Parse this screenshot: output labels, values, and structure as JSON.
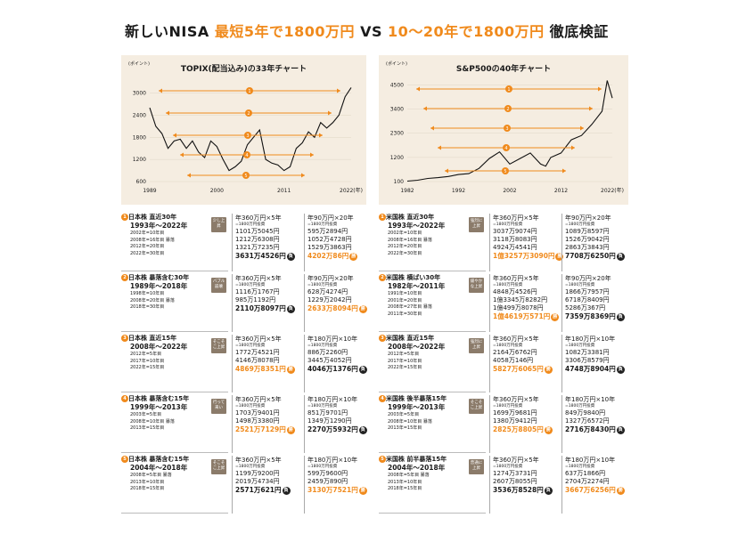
{
  "title": {
    "part1": "新しいNISA ",
    "part2": "最短5年で1800万円",
    "part3": " VS ",
    "part4": "10〜20年で1800万円",
    "part5": " 徹底検証"
  },
  "chart_data": [
    {
      "type": "line",
      "title": "TOPIX(配当込み)の33年チャート",
      "ylabel": "(ポイント)",
      "yticks": [
        "3000",
        "2400",
        "1800",
        "1200",
        "600"
      ],
      "xticks": [
        "1989",
        "2000",
        "2011",
        "2022(年)"
      ],
      "ylim": [
        600,
        3400
      ],
      "x": [
        1989,
        1990,
        1991,
        1992,
        1993,
        1994,
        1995,
        1996,
        1997,
        1998,
        1999,
        2000,
        2001,
        2002,
        2003,
        2004,
        2005,
        2006,
        2007,
        2008,
        2009,
        2010,
        2011,
        2012,
        2013,
        2014,
        2015,
        2016,
        2017,
        2018,
        2019,
        2020,
        2021,
        2022
      ],
      "values": [
        2600,
        2100,
        1900,
        1500,
        1700,
        1750,
        1500,
        1700,
        1400,
        1250,
        1700,
        1550,
        1200,
        900,
        1000,
        1150,
        1600,
        1800,
        2000,
        1200,
        1100,
        1050,
        900,
        1000,
        1500,
        1650,
        1950,
        1800,
        2200,
        2050,
        2200,
        2400,
        2900,
        3150
      ],
      "arrows": [
        "1",
        "2",
        "3",
        "4",
        "5"
      ]
    },
    {
      "type": "line",
      "title": "S&P500の40年チャート",
      "ylabel": "(ポイント)",
      "yticks": [
        "4500",
        "3400",
        "2300",
        "1200",
        "100"
      ],
      "xticks": [
        "1982",
        "1992",
        "2002",
        "2012",
        "2022(年)"
      ],
      "ylim": [
        100,
        4800
      ],
      "x": [
        1982,
        1984,
        1986,
        1988,
        1990,
        1992,
        1994,
        1996,
        1998,
        2000,
        2002,
        2004,
        2006,
        2008,
        2009,
        2010,
        2012,
        2014,
        2016,
        2018,
        2020,
        2021,
        2022
      ],
      "values": [
        120,
        160,
        240,
        280,
        330,
        420,
        460,
        700,
        1150,
        1450,
        900,
        1150,
        1400,
        900,
        800,
        1200,
        1400,
        2000,
        2200,
        2700,
        3300,
        4700,
        3900
      ],
      "arrows": [
        "1",
        "2",
        "3",
        "4",
        "5"
      ]
    }
  ],
  "left_rows": [
    {
      "num": "1",
      "head": "日本株 直近30年",
      "sub": "1993年〜2022年",
      "badge": "少し上昇",
      "lines": [
        "2002年=10年目",
        "2008年=16年目 暴落",
        "2012年=20年目",
        "2022年=30年目"
      ],
      "a": {
        "head": "年360万円×5年",
        "sub": "=1800万円投資",
        "vals": [
          "1101万5045円",
          "1212万6308円",
          "1321万7235円"
        ],
        "final": "3631万4526円",
        "final_orange": false,
        "tag": "負",
        "tag_win": false
      },
      "b": {
        "head": "年90万円×20年",
        "sub": "=1800万円投資",
        "vals": [
          "595万2894円",
          "1052万4728円",
          "1529万3863円"
        ],
        "final": "4202万86円",
        "final_orange": true,
        "tag": "勝",
        "tag_win": true
      }
    },
    {
      "num": "2",
      "head": "日本株 暴落含む30年",
      "sub": "1989年〜2018年",
      "badge": "バブル崩壊",
      "lines": [
        "1998年=10年目",
        "2008年=20年目 暴落",
        "2018年=30年目"
      ],
      "a": {
        "head": "年360万円×5年",
        "sub": "=1800万円投資",
        "vals": [
          "1116万1767円",
          "985万1192円"
        ],
        "final": "2110万8097円",
        "final_orange": false,
        "tag": "負",
        "tag_win": false
      },
      "b": {
        "head": "年90万円×20年",
        "sub": "=1800万円投資",
        "vals": [
          "628万4274円",
          "1229万2042円"
        ],
        "final": "2633万8094円",
        "final_orange": true,
        "tag": "勝",
        "tag_win": true
      }
    },
    {
      "num": "3",
      "head": "日本株 直近15年",
      "sub": "2008年〜2022年",
      "badge": "そこそこ上昇",
      "lines": [
        "2012年=5年目",
        "2017年=10年目",
        "2022年=15年目"
      ],
      "a": {
        "head": "年360万円×5年",
        "sub": "=1800万円投資",
        "vals": [
          "1772万4521円",
          "4146万8078円"
        ],
        "final": "4869万8351円",
        "final_orange": true,
        "tag": "勝",
        "tag_win": true
      },
      "b": {
        "head": "年180万円×10年",
        "sub": "=1800万円投資",
        "vals": [
          "886万2260円",
          "3445万4052円"
        ],
        "final": "4046万1376円",
        "final_orange": false,
        "tag": "負",
        "tag_win": false
      }
    },
    {
      "num": "4",
      "head": "日本株 暴落含む15年",
      "sub": "1999年〜2013年",
      "badge": "行って来い",
      "lines": [
        "2003年=5年目",
        "2008年=10年目 暴落",
        "2013年=15年目"
      ],
      "a": {
        "head": "年360万円×5年",
        "sub": "=1800万円投資",
        "vals": [
          "1703万9401円",
          "1498万3380円"
        ],
        "final": "2521万7129円",
        "final_orange": true,
        "tag": "勝",
        "tag_win": true
      },
      "b": {
        "head": "年180万円×10年",
        "sub": "=1800万円投資",
        "vals": [
          "851万9701円",
          "1349万1290円"
        ],
        "final": "2270万5932円",
        "final_orange": false,
        "tag": "負",
        "tag_win": false
      }
    },
    {
      "num": "5",
      "head": "日本株 暴落含む15年",
      "sub": "2004年〜2018年",
      "badge": "そこそこ上昇",
      "lines": [
        "2008年=5年目 暴落",
        "2013年=10年目",
        "2018年=15年目"
      ],
      "a": {
        "head": "年360万円×5年",
        "sub": "=1800万円投資",
        "vals": [
          "1199万9200円",
          "2019万4734円"
        ],
        "final": "2571万621円",
        "final_orange": false,
        "tag": "負",
        "tag_win": false
      },
      "b": {
        "head": "年180万円×10年",
        "sub": "=1800万円投資",
        "vals": [
          "599万9600円",
          "2459万890円"
        ],
        "final": "3130万7521円",
        "final_orange": true,
        "tag": "勝",
        "tag_win": true
      }
    }
  ],
  "right_rows": [
    {
      "num": "1",
      "head": "米国株 直近30年",
      "sub": "1993年〜2022年",
      "badge": "強烈に上昇",
      "lines": [
        "2002年=10年目",
        "2008年=16年目 暴落",
        "2012年=20年目",
        "2022年=30年目"
      ],
      "a": {
        "head": "年360万円×5年",
        "sub": "=1800万円投資",
        "vals": [
          "3037万9074円",
          "3118万8083円",
          "4924万4541円"
        ],
        "final": "1億3257万3090円",
        "final_orange": true,
        "tag": "勝",
        "tag_win": true
      },
      "b": {
        "head": "年90万円×20年",
        "sub": "=1800万円投資",
        "vals": [
          "1089万8597円",
          "1526万9042円",
          "2863万3843円"
        ],
        "final": "7708万6250円",
        "final_orange": false,
        "tag": "負",
        "tag_win": false
      }
    },
    {
      "num": "2",
      "head": "米国株 横ばい30年",
      "sub": "1982年〜2011年",
      "badge": "緩やかな上昇",
      "lines": [
        "1991年=10年目",
        "2001年=20年目",
        "2008年=27年目 暴落",
        "2011年=30年目"
      ],
      "a": {
        "head": "年360万円×5年",
        "sub": "=1800万円投資",
        "vals": [
          "4848万4526円",
          "1億3345万8282円",
          "1億499万8078円"
        ],
        "final": "1億4619万571円",
        "final_orange": true,
        "tag": "勝",
        "tag_win": true
      },
      "b": {
        "head": "年90万円×20年",
        "sub": "=1800万円投資",
        "vals": [
          "1866万7957円",
          "6718万8409円",
          "5286万367円"
        ],
        "final": "7359万8369円",
        "final_orange": false,
        "tag": "負",
        "tag_win": false
      }
    },
    {
      "num": "3",
      "head": "米国株 直近15年",
      "sub": "2008年〜2022年",
      "badge": "強烈に上昇",
      "lines": [
        "2012年=5年目",
        "2017年=10年目",
        "2022年=15年目"
      ],
      "a": {
        "head": "年360万円×5年",
        "sub": "=1800万円投資",
        "vals": [
          "2164万6762円",
          "4058万146円"
        ],
        "final": "5827万6065円",
        "final_orange": true,
        "tag": "勝",
        "tag_win": true
      },
      "b": {
        "head": "年180万円×10年",
        "sub": "=1800万円投資",
        "vals": [
          "1082万3381円",
          "3306万8579円"
        ],
        "final": "4748万8904円",
        "final_orange": false,
        "tag": "負",
        "tag_win": false
      }
    },
    {
      "num": "4",
      "head": "米国株 後半暴落15年",
      "sub": "1999年〜2013年",
      "badge": "そこそこ上昇",
      "lines": [
        "2003年=5年目",
        "2008年=10年目 暴落",
        "2013年=15年目"
      ],
      "a": {
        "head": "年360万円×5年",
        "sub": "=1800万円投資",
        "vals": [
          "1699万9681円",
          "1380万9412円"
        ],
        "final": "2825万8805円",
        "final_orange": true,
        "tag": "勝",
        "tag_win": true
      },
      "b": {
        "head": "年180万円×10年",
        "sub": "=1800万円投資",
        "vals": [
          "849万9840円",
          "1327万6572円"
        ],
        "final": "2716万8430円",
        "final_orange": false,
        "tag": "負",
        "tag_win": false
      }
    },
    {
      "num": "5",
      "head": "米国株 前半暴落15年",
      "sub": "2004年〜2018年",
      "badge": "普通に上昇",
      "lines": [
        "2008年=5年目 暴落",
        "2013年=10年目",
        "2018年=15年目"
      ],
      "a": {
        "head": "年360万円×5年",
        "sub": "=1800万円投資",
        "vals": [
          "1274万3731円",
          "2607万8055円"
        ],
        "final": "3536万8528円",
        "final_orange": false,
        "tag": "負",
        "tag_win": false
      },
      "b": {
        "head": "年180万円×10年",
        "sub": "=1800万円投資",
        "vals": [
          "637万1866円",
          "2704万2274円"
        ],
        "final": "3667万6256円",
        "final_orange": true,
        "tag": "勝",
        "tag_win": true
      }
    }
  ]
}
